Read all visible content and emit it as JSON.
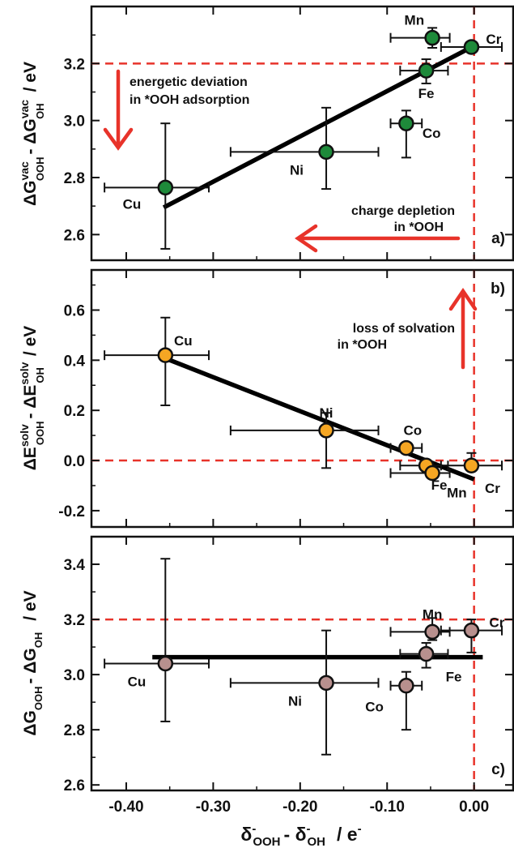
{
  "colors": {
    "panel_a_marker": "#1e8a3a",
    "panel_b_marker": "#f5a623",
    "panel_c_marker": "#b8908e",
    "reference_line": "#e8332a",
    "arrow": "#e8332a",
    "fit_line": "#000000"
  },
  "xaxis": {
    "label_main": "δ",
    "label_sup1": "-",
    "label_sub1": "OOH",
    "label_mid": "- δ",
    "label_sup2": "-",
    "label_sub2": "OH",
    "label_unit": "/ e",
    "label_unit_sup": "-"
  },
  "chart_data": [
    {
      "type": "scatter",
      "panel_label": "a)",
      "ylabel": {
        "p1": "ΔG",
        "p1_sup": "vac",
        "p1_sub": "OOH",
        "p2": "- ΔG",
        "p2_sup": "vac",
        "p2_sub": "OH",
        "unit": "/ eV"
      },
      "xlim": [
        -0.44,
        0.045
      ],
      "ylim": [
        2.51,
        3.4
      ],
      "yticks": [
        "2.6",
        "2.8",
        "3.0",
        "3.2"
      ],
      "ytick_values": [
        2.6,
        2.8,
        3.0,
        3.2
      ],
      "points": [
        {
          "label": "Cu",
          "x": -0.355,
          "y": 2.765,
          "xerr": [
            0.07,
            0.05
          ],
          "yerr": [
            0.215,
            0.225
          ]
        },
        {
          "label": "Ni",
          "x": -0.17,
          "y": 2.89,
          "xerr": [
            0.11,
            0.06
          ],
          "yerr": [
            0.13,
            0.155
          ]
        },
        {
          "label": "Co",
          "x": -0.078,
          "y": 2.99,
          "xerr": [
            0.018,
            0.018
          ],
          "yerr": [
            0.12,
            0.045
          ]
        },
        {
          "label": "Fe",
          "x": -0.055,
          "y": 3.175,
          "xerr": [
            0.03,
            0.025
          ],
          "yerr": [
            0.045,
            0.04
          ]
        },
        {
          "label": "Mn",
          "x": -0.048,
          "y": 3.29,
          "xerr": [
            0.048,
            0.02
          ],
          "yerr": [
            0.035,
            0.035
          ]
        },
        {
          "label": "Cr",
          "x": -0.003,
          "y": 3.258,
          "xerr": [
            0.035,
            0.035
          ],
          "yerr": [
            0.01,
            0.01
          ]
        }
      ],
      "fit": {
        "x": [
          -0.357,
          0.0
        ],
        "y": [
          2.695,
          3.262
        ]
      },
      "hline": 3.2,
      "vline": 0.0,
      "annotations": [
        {
          "line1": "energetic deviation",
          "line2": "in *OOH adsorption"
        },
        {
          "line1": "charge depletion",
          "line2": "in *OOH"
        }
      ]
    },
    {
      "type": "scatter",
      "panel_label": "b)",
      "ylabel": {
        "p1": "ΔE",
        "p1_sup": "solv",
        "p1_sub": "OOH",
        "p2": "- ΔE",
        "p2_sup": "solv",
        "p2_sub": "OH",
        "unit": "/ eV"
      },
      "xlim": [
        -0.44,
        0.045
      ],
      "ylim": [
        -0.265,
        0.76
      ],
      "yticks": [
        "-0.2",
        "0.0",
        "0.2",
        "0.4",
        "0.6"
      ],
      "ytick_values": [
        -0.2,
        0.0,
        0.2,
        0.4,
        0.6
      ],
      "points": [
        {
          "label": "Cu",
          "x": -0.355,
          "y": 0.42,
          "xerr": [
            0.07,
            0.05
          ],
          "yerr": [
            0.2,
            0.15
          ]
        },
        {
          "label": "Ni",
          "x": -0.17,
          "y": 0.12,
          "xerr": [
            0.11,
            0.06
          ],
          "yerr": [
            0.15,
            0.07
          ]
        },
        {
          "label": "Co",
          "x": -0.078,
          "y": 0.05,
          "xerr": [
            0.018,
            0.018
          ],
          "yerr": [
            0.0,
            0.0
          ]
        },
        {
          "label": "Fe",
          "x": -0.055,
          "y": -0.02,
          "xerr": [
            0.03,
            0.025
          ],
          "yerr": [
            0.03,
            0.0
          ]
        },
        {
          "label": "Mn",
          "x": -0.048,
          "y": -0.05,
          "xerr": [
            0.048,
            0.02
          ],
          "yerr": [
            0.0,
            0.0
          ]
        },
        {
          "label": "Cr",
          "x": -0.003,
          "y": -0.02,
          "xerr": [
            0.035,
            0.035
          ],
          "yerr": [
            0.0,
            0.05
          ]
        }
      ],
      "fit": {
        "x": [
          -0.357,
          0.0
        ],
        "y": [
          0.41,
          -0.075
        ]
      },
      "hline": 0.0,
      "vline": 0.0,
      "annotations": [
        {
          "line1": "loss of solvation",
          "line2": "in *OOH"
        }
      ]
    },
    {
      "type": "scatter",
      "panel_label": "c)",
      "ylabel": {
        "p1": "ΔG",
        "p1_sub": "OOH",
        "p2": "- ΔG",
        "p2_sub": "OH",
        "unit": "/ eV"
      },
      "xlim": [
        -0.44,
        0.045
      ],
      "ylim": [
        2.58,
        3.5
      ],
      "yticks": [
        "2.6",
        "2.8",
        "3.0",
        "3.2",
        "3.4"
      ],
      "ytick_values": [
        2.6,
        2.8,
        3.0,
        3.2,
        3.4
      ],
      "xticks": [
        "-0.40",
        "-0.30",
        "-0.20",
        "-0.10",
        "0.00"
      ],
      "xtick_values": [
        -0.4,
        -0.3,
        -0.2,
        -0.1,
        0.0
      ],
      "points": [
        {
          "label": "Cu",
          "x": -0.355,
          "y": 3.04,
          "xerr": [
            0.07,
            0.05
          ],
          "yerr": [
            0.21,
            0.38
          ]
        },
        {
          "label": "Ni",
          "x": -0.17,
          "y": 2.97,
          "xerr": [
            0.11,
            0.06
          ],
          "yerr": [
            0.26,
            0.19
          ]
        },
        {
          "label": "Co",
          "x": -0.078,
          "y": 2.96,
          "xerr": [
            0.018,
            0.018
          ],
          "yerr": [
            0.16,
            0.05
          ]
        },
        {
          "label": "Fe",
          "x": -0.055,
          "y": 3.075,
          "xerr": [
            0.03,
            0.025
          ],
          "yerr": [
            0.05,
            0.04
          ]
        },
        {
          "label": "Mn",
          "x": -0.048,
          "y": 3.155,
          "xerr": [
            0.048,
            0.02
          ],
          "yerr": [
            0.03,
            0.05
          ]
        },
        {
          "label": "Cr",
          "x": -0.003,
          "y": 3.16,
          "xerr": [
            0.035,
            0.035
          ],
          "yerr": [
            0.08,
            0.04
          ]
        }
      ],
      "fit": {
        "x": [
          -0.37,
          0.01
        ],
        "y": [
          3.063,
          3.063
        ]
      },
      "hline": 3.2,
      "vline": 0.0
    }
  ]
}
